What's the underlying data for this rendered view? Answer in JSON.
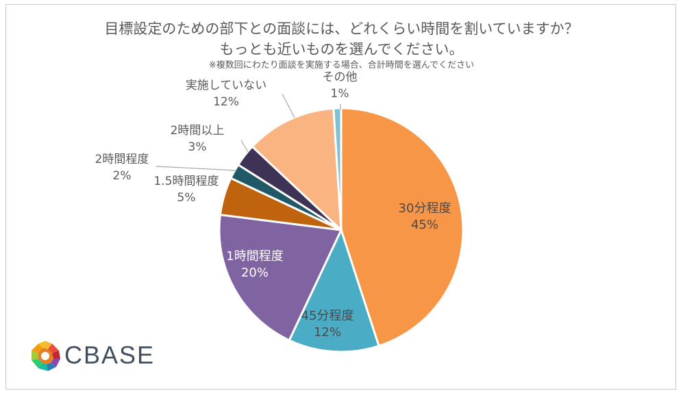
{
  "chart_data": {
    "type": "pie",
    "title": "目標設定のための部下との面談には、どれくらい時間を割いていますか？",
    "subtitle": "もっとも近いものを選んでください。",
    "note": "※複数回にわたり面談を実施する場合、合計時間を選んでください",
    "start_angle_deg": 0,
    "direction": "clockwise",
    "slices": [
      {
        "label": "30分程度",
        "value": 45,
        "display": "45%",
        "color": "#F79646",
        "label_color": "#4a4a4a"
      },
      {
        "label": "45分程度",
        "value": 12,
        "display": "12%",
        "color": "#4BACC6",
        "label_color": "#4a4a4a"
      },
      {
        "label": "1時間程度",
        "value": 20,
        "display": "20%",
        "color": "#8064A2",
        "label_color": "#ffffff"
      },
      {
        "label": "1.5時間程度",
        "value": 5,
        "display": "5%",
        "color": "#C0630F",
        "label_color": "#595959"
      },
      {
        "label": "2時間程度",
        "value": 2,
        "display": "2%",
        "color": "#215868",
        "label_color": "#595959"
      },
      {
        "label": "2時間以上",
        "value": 3,
        "display": "3%",
        "color": "#3E3355",
        "label_color": "#595959"
      },
      {
        "label": "実施していない",
        "value": 12,
        "display": "12%",
        "color": "#FAB482",
        "label_color": "#595959"
      },
      {
        "label": "その他",
        "value": 1,
        "display": "1%",
        "color": "#7EC0D4",
        "label_color": "#595959"
      }
    ]
  },
  "logo": {
    "text": "CBASE"
  }
}
